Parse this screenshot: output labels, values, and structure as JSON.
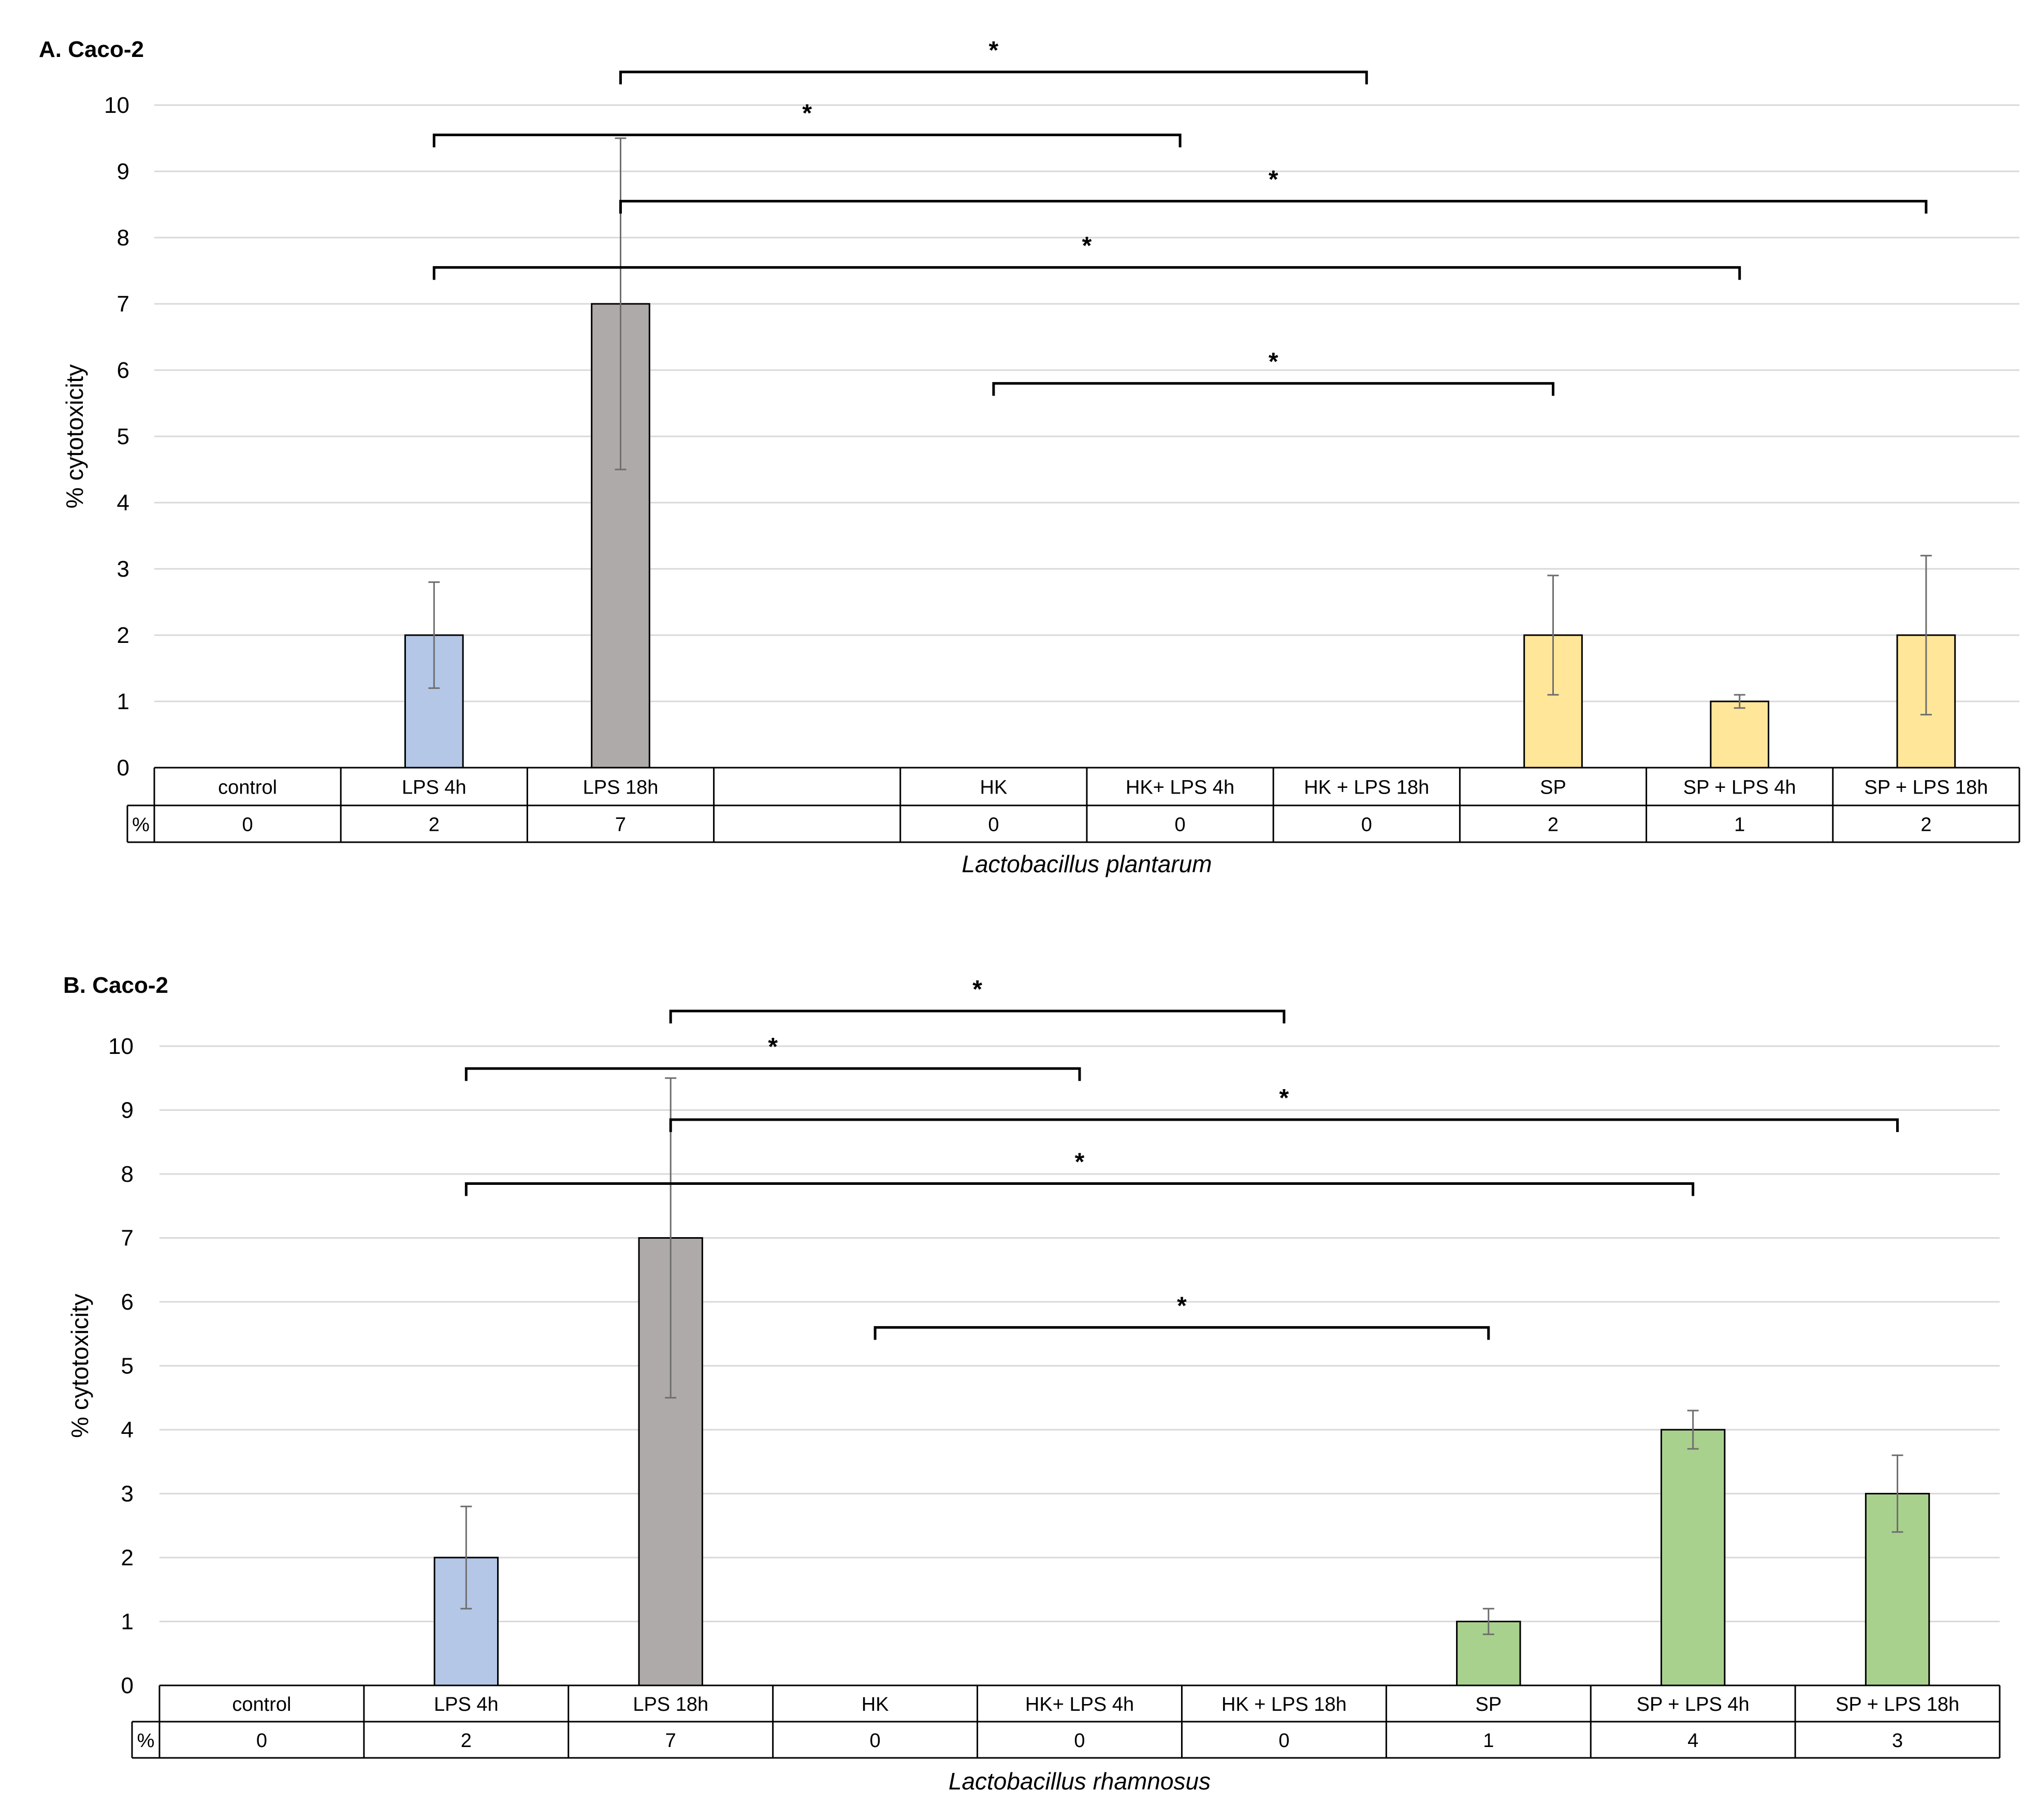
{
  "chart_data": [
    {
      "type": "bar",
      "title": "A. Caco-2",
      "ylabel": "% cytotoxicity",
      "xlabel": "Lactobacillus plantarum",
      "ylim": [
        0,
        10
      ],
      "yticks": [
        0,
        1,
        2,
        3,
        4,
        5,
        6,
        7,
        8,
        9,
        10
      ],
      "grid": true,
      "categories": [
        "control",
        "LPS 4h",
        "LPS 18h",
        "",
        "HK",
        "HK+ LPS 4h",
        "HK + LPS 18h",
        "SP",
        "SP + LPS 4h",
        "SP + LPS 18h"
      ],
      "values": [
        0,
        2,
        7,
        null,
        0,
        0,
        0,
        2,
        1,
        2
      ],
      "error_low": [
        null,
        1.2,
        4.5,
        null,
        null,
        null,
        null,
        1.1,
        0.9,
        0.8
      ],
      "error_high": [
        null,
        2.8,
        9.5,
        null,
        null,
        null,
        null,
        2.9,
        1.1,
        3.2
      ],
      "bar_colors": [
        null,
        "#b4c7e7",
        "#aeaaaa",
        null,
        null,
        null,
        null,
        "#ffe699",
        "#ffe699",
        "#ffe699"
      ],
      "table_row_label": "%",
      "table_values": [
        "0",
        "2",
        "7",
        "",
        "0",
        "0",
        "0",
        "2",
        "1",
        "2"
      ],
      "significance": [
        {
          "from": 2,
          "to": 6,
          "label": "*",
          "level": 10.5
        },
        {
          "from": 1,
          "to": 5,
          "label": "*",
          "level": 9.55
        },
        {
          "from": 2,
          "to": 9,
          "label": "*",
          "level": 8.55
        },
        {
          "from": 1,
          "to": 8,
          "label": "*",
          "level": 7.55
        },
        {
          "from": 4,
          "to": 7,
          "label": "*",
          "level": 5.8
        }
      ]
    },
    {
      "type": "bar",
      "title": "B. Caco-2",
      "ylabel": "% cytotoxicity",
      "xlabel": "Lactobacillus rhamnosus",
      "ylim": [
        0,
        10
      ],
      "yticks": [
        0,
        1,
        2,
        3,
        4,
        5,
        6,
        7,
        8,
        9,
        10
      ],
      "grid": true,
      "categories": [
        "control",
        "LPS 4h",
        "LPS 18h",
        "HK",
        "HK+ LPS 4h",
        "HK + LPS 18h",
        "SP",
        "SP + LPS 4h",
        "SP + LPS 18h"
      ],
      "values": [
        0,
        2,
        7,
        0,
        0,
        0,
        1,
        4,
        3
      ],
      "error_low": [
        null,
        1.2,
        4.5,
        null,
        null,
        null,
        0.8,
        3.7,
        2.4
      ],
      "error_high": [
        null,
        2.8,
        9.5,
        null,
        null,
        null,
        1.2,
        4.3,
        3.6
      ],
      "bar_colors": [
        null,
        "#b4c7e7",
        "#aeaaaa",
        null,
        null,
        null,
        "#a9d18e",
        "#a9d18e",
        "#a9d18e"
      ],
      "table_row_label": "%",
      "table_values": [
        "0",
        "2",
        "7",
        "0",
        "0",
        "0",
        "1",
        "4",
        "3"
      ],
      "significance": [
        {
          "from": 2,
          "to": 5,
          "label": "*",
          "level": 10.55
        },
        {
          "from": 1,
          "to": 4,
          "label": "*",
          "level": 9.65
        },
        {
          "from": 2,
          "to": 8,
          "label": "*",
          "level": 8.85
        },
        {
          "from": 1,
          "to": 7,
          "label": "*",
          "level": 7.85
        },
        {
          "from": 3,
          "to": 6,
          "label": "*",
          "level": 5.6
        }
      ]
    }
  ]
}
